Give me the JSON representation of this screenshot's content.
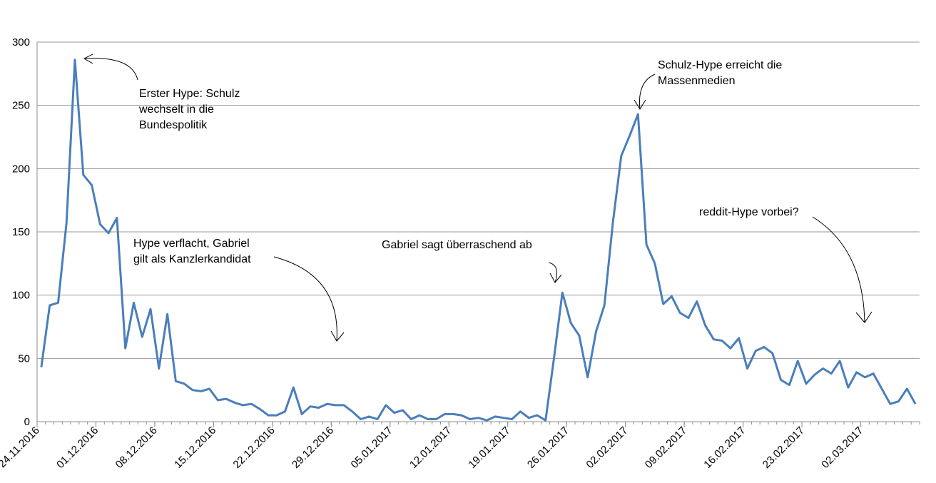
{
  "chart_data": {
    "type": "line",
    "x_start": "24.11.2016",
    "x_end": "08.03.2017",
    "x_tick_labels": [
      "24.11.2016",
      "01.12.2016",
      "08.12.2016",
      "15.12.2016",
      "22.12.2016",
      "29.12.2016",
      "05.01.2017",
      "12.01.2017",
      "19.01.2017",
      "26.01.2017",
      "02.02.2017",
      "09.02.2017",
      "16.02.2017",
      "23.02.2017",
      "02.03.2017"
    ],
    "ylim": [
      0,
      300
    ],
    "y_ticks": [
      0,
      50,
      100,
      150,
      200,
      250,
      300
    ],
    "grid": true,
    "legend": "none",
    "series": [
      {
        "color": "#4a7ebb",
        "points": [
          [
            "24.11.2016",
            43
          ],
          [
            "25.11.2016",
            92
          ],
          [
            "26.11.2016",
            94
          ],
          [
            "27.11.2016",
            157
          ],
          [
            "28.11.2016",
            286
          ],
          [
            "29.11.2016",
            195
          ],
          [
            "30.11.2016",
            187
          ],
          [
            "01.12.2016",
            156
          ],
          [
            "02.12.2016",
            149
          ],
          [
            "03.12.2016",
            161
          ],
          [
            "04.12.2016",
            58
          ],
          [
            "05.12.2016",
            94
          ],
          [
            "06.12.2016",
            67
          ],
          [
            "07.12.2016",
            89
          ],
          [
            "08.12.2016",
            42
          ],
          [
            "09.12.2016",
            85
          ],
          [
            "10.12.2016",
            32
          ],
          [
            "11.12.2016",
            30
          ],
          [
            "12.12.2016",
            25
          ],
          [
            "13.12.2016",
            24
          ],
          [
            "14.12.2016",
            26
          ],
          [
            "15.12.2016",
            17
          ],
          [
            "16.12.2016",
            18
          ],
          [
            "17.12.2016",
            15
          ],
          [
            "18.12.2016",
            13
          ],
          [
            "19.12.2016",
            14
          ],
          [
            "20.12.2016",
            10
          ],
          [
            "21.12.2016",
            5
          ],
          [
            "22.12.2016",
            5
          ],
          [
            "23.12.2016",
            8
          ],
          [
            "24.12.2016",
            27
          ],
          [
            "25.12.2016",
            6
          ],
          [
            "26.12.2016",
            12
          ],
          [
            "27.12.2016",
            11
          ],
          [
            "28.12.2016",
            14
          ],
          [
            "29.12.2016",
            13
          ],
          [
            "30.12.2016",
            13
          ],
          [
            "31.12.2016",
            8
          ],
          [
            "01.01.2017",
            2
          ],
          [
            "02.01.2017",
            4
          ],
          [
            "03.01.2017",
            2
          ],
          [
            "04.01.2017",
            13
          ],
          [
            "05.01.2017",
            7
          ],
          [
            "06.01.2017",
            9
          ],
          [
            "07.01.2017",
            2
          ],
          [
            "08.01.2017",
            5
          ],
          [
            "09.01.2017",
            2
          ],
          [
            "10.01.2017",
            2
          ],
          [
            "11.01.2017",
            6
          ],
          [
            "12.01.2017",
            6
          ],
          [
            "13.01.2017",
            5
          ],
          [
            "14.01.2017",
            2
          ],
          [
            "15.01.2017",
            3
          ],
          [
            "16.01.2017",
            1
          ],
          [
            "17.01.2017",
            4
          ],
          [
            "18.01.2017",
            3
          ],
          [
            "19.01.2017",
            2
          ],
          [
            "20.01.2017",
            8
          ],
          [
            "21.01.2017",
            3
          ],
          [
            "22.01.2017",
            5
          ],
          [
            "23.01.2017",
            1
          ],
          [
            "24.01.2017",
            50
          ],
          [
            "25.01.2017",
            102
          ],
          [
            "26.01.2017",
            78
          ],
          [
            "27.01.2017",
            68
          ],
          [
            "28.01.2017",
            35
          ],
          [
            "29.01.2017",
            71
          ],
          [
            "30.01.2017",
            92
          ],
          [
            "31.01.2017",
            157
          ],
          [
            "01.02.2017",
            210
          ],
          [
            "02.02.2017",
            226
          ],
          [
            "03.02.2017",
            243
          ],
          [
            "04.02.2017",
            140
          ],
          [
            "05.02.2017",
            125
          ],
          [
            "06.02.2017",
            93
          ],
          [
            "07.02.2017",
            99
          ],
          [
            "08.02.2017",
            86
          ],
          [
            "09.02.2017",
            82
          ],
          [
            "10.02.2017",
            95
          ],
          [
            "11.02.2017",
            76
          ],
          [
            "12.02.2017",
            65
          ],
          [
            "13.02.2017",
            64
          ],
          [
            "14.02.2017",
            58
          ],
          [
            "15.02.2017",
            66
          ],
          [
            "16.02.2017",
            42
          ],
          [
            "17.02.2017",
            56
          ],
          [
            "18.02.2017",
            59
          ],
          [
            "19.02.2017",
            54
          ],
          [
            "20.02.2017",
            33
          ],
          [
            "21.02.2017",
            29
          ],
          [
            "22.02.2017",
            48
          ],
          [
            "23.02.2017",
            30
          ],
          [
            "24.02.2017",
            37
          ],
          [
            "25.02.2017",
            42
          ],
          [
            "26.02.2017",
            38
          ],
          [
            "27.02.2017",
            48
          ],
          [
            "28.02.2017",
            27
          ],
          [
            "01.03.2017",
            39
          ],
          [
            "02.03.2017",
            35
          ],
          [
            "03.03.2017",
            38
          ],
          [
            "04.03.2017",
            26
          ],
          [
            "05.03.2017",
            14
          ],
          [
            "06.03.2017",
            16
          ],
          [
            "07.03.2017",
            26
          ],
          [
            "08.03.2017",
            14
          ]
        ]
      }
    ],
    "annotations": [
      {
        "lines": [
          "Erster Hype: Schulz",
          "wechselt in die",
          "Bundespolitik"
        ],
        "at": "28.11.2016"
      },
      {
        "lines": [
          "Hype verflacht, Gabriel",
          "gilt als Kanzlerkandidat"
        ],
        "at": "29.12.2016"
      },
      {
        "lines": [
          "Gabriel sagt überraschend ab"
        ],
        "at": "25.01.2017"
      },
      {
        "lines": [
          "Schulz-Hype erreicht die",
          "Massenmedien"
        ],
        "at": "03.02.2017"
      },
      {
        "lines": [
          "reddit-Hype vorbei?"
        ],
        "at": "02.03.2017"
      }
    ]
  }
}
